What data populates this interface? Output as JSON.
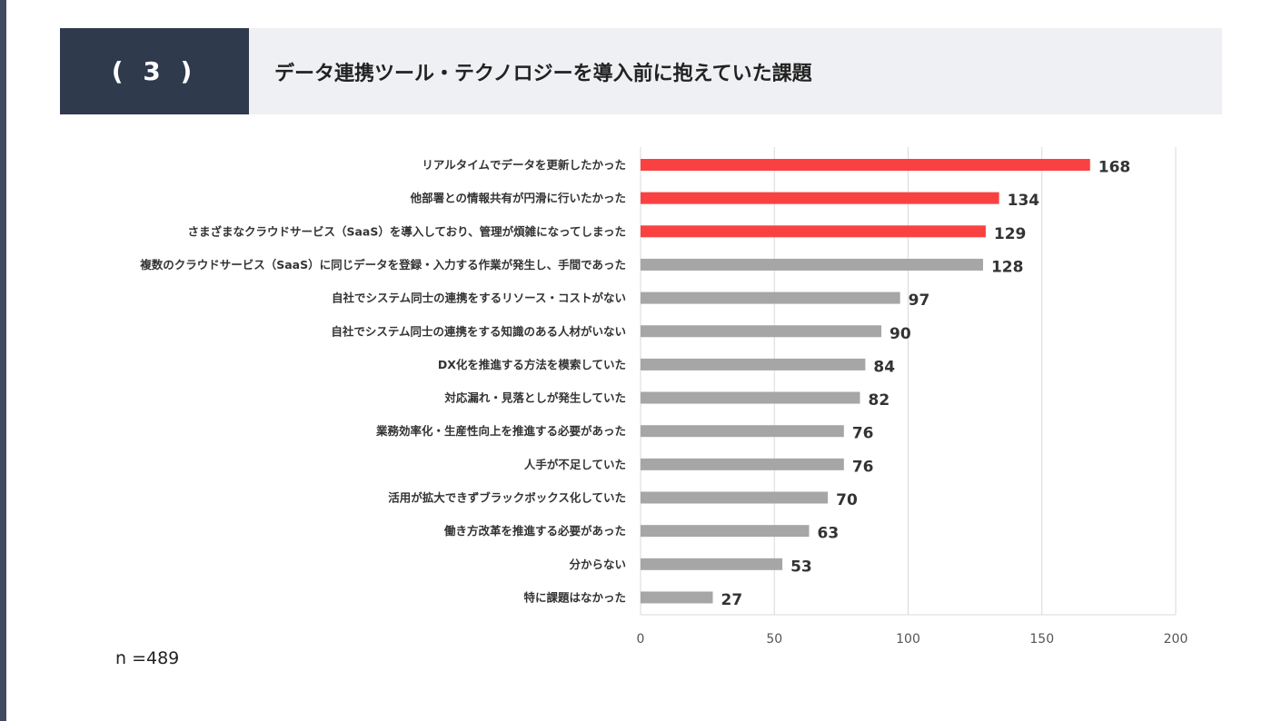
{
  "header": {
    "number": "( 3 )",
    "title": "データ連携ツール・テクノロジーを導入前に抱えていた課題"
  },
  "sample": "n =489",
  "colors": {
    "highlight": "#fa4141",
    "normal": "#a6a6a6",
    "grid": "#d9d9d9",
    "header_dark": "#2f3a4d",
    "header_light": "#eff0f3"
  },
  "chart_data": {
    "type": "bar",
    "orientation": "horizontal",
    "title": "データ連携ツール・テクノロジーを導入前に抱えていた課題",
    "xlabel": "",
    "ylabel": "",
    "xlim": [
      0,
      200
    ],
    "ticks": [
      0,
      50,
      100,
      150,
      200
    ],
    "grid": true,
    "categories": [
      "リアルタイムでデータを更新したかった",
      "他部署との情報共有が円滑に行いたかった",
      "さまざまなクラウドサービス（SaaS）を導入しており、管理が煩雑になってしまった",
      "複数のクラウドサービス（SaaS）に同じデータを登録・入力する作業が発生し、手間であった",
      "自社でシステム同士の連携をするリソース・コストがない",
      "自社でシステム同士の連携をする知識のある人材がいない",
      "DX化を推進する方法を模索していた",
      "対応漏れ・見落としが発生していた",
      "業務効率化・生産性向上を推進する必要があった",
      "人手が不足していた",
      "活用が拡大できずブラックボックス化していた",
      "働き方改革を推進する必要があった",
      "分からない",
      "特に課題はなかった"
    ],
    "values": [
      168,
      134,
      129,
      128,
      97,
      90,
      84,
      82,
      76,
      76,
      70,
      63,
      53,
      27
    ],
    "highlighted": [
      true,
      true,
      true,
      false,
      false,
      false,
      false,
      false,
      false,
      false,
      false,
      false,
      false,
      false
    ]
  }
}
